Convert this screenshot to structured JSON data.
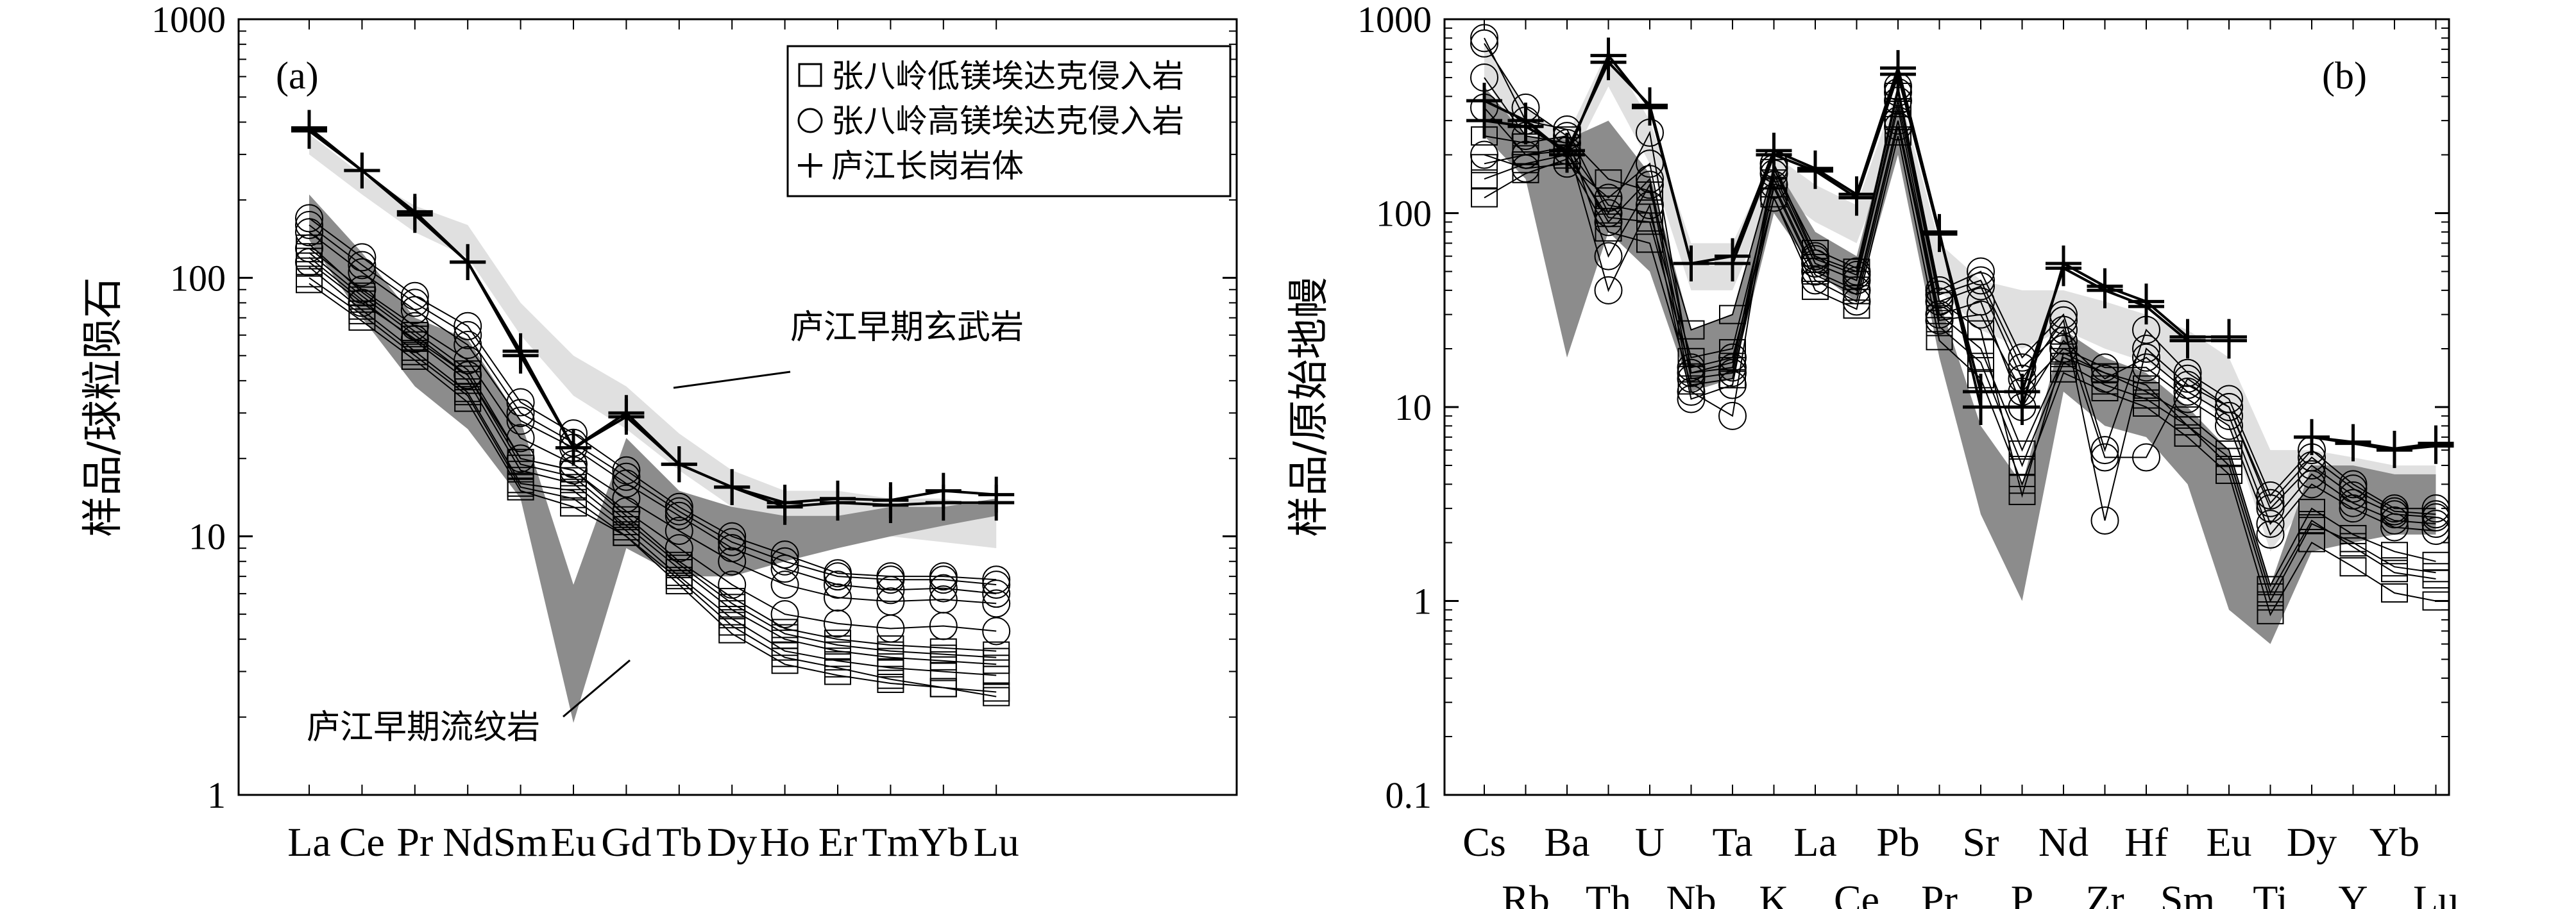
{
  "chart_data": [
    {
      "type": "line",
      "panel_label": "(a)",
      "ylabel": "样品/球粒陨石",
      "xlabel": "",
      "y_scale": "log",
      "ylim": [
        1,
        1000
      ],
      "yticks": [
        "1",
        "10",
        "100",
        "1000"
      ],
      "categories": [
        "La",
        "Ce",
        "Pr",
        "Nd",
        "Sm",
        "Eu",
        "Gd",
        "Tb",
        "Dy",
        "Ho",
        "Er",
        "Tm",
        "Yb",
        "Lu"
      ],
      "legend": [
        {
          "marker": "square",
          "label": "张八岭低镁埃达克侵入岩"
        },
        {
          "marker": "circle",
          "label": "张八岭高镁埃达克侵入岩"
        },
        {
          "marker": "plus",
          "label": "庐江长岗岩体"
        }
      ],
      "annotations": [
        "庐江早期玄武岩",
        "庐江早期流纹岩"
      ],
      "fields": [
        {
          "name": "庐江早期玄武岩",
          "color": "#e0e0e0",
          "upper": [
            360,
            250,
            190,
            160,
            80,
            50,
            38,
            25,
            18,
            15,
            15,
            14,
            14,
            13
          ],
          "lower": [
            300,
            210,
            150,
            120,
            60,
            35,
            26,
            18,
            13,
            11,
            10.5,
            10,
            9.5,
            9
          ]
        },
        {
          "name": "庐江早期流纹岩",
          "color": "#8c8c8c",
          "upper": [
            210,
            125,
            70,
            58,
            28,
            6.5,
            24,
            15,
            13,
            12,
            12,
            13,
            13,
            14
          ],
          "lower": [
            140,
            70,
            38,
            26,
            14,
            1.9,
            9,
            7,
            7,
            8,
            9,
            10,
            11,
            12
          ]
        }
      ],
      "series": [
        {
          "name": "张八岭低镁埃达克侵入岩",
          "marker": "square",
          "values": [
            95,
            68,
            48,
            33,
            15,
            13,
            10,
            6.5,
            4.2,
            3.2,
            2.9,
            2.7,
            2.6,
            2.5
          ]
        },
        {
          "name": "张八岭低镁埃达克侵入岩",
          "marker": "square",
          "values": [
            110,
            75,
            52,
            36,
            16,
            15,
            10.5,
            7,
            4.8,
            3.6,
            3.3,
            3.1,
            3,
            2.9
          ]
        },
        {
          "name": "张八岭低镁埃达克侵入岩",
          "marker": "square",
          "values": [
            120,
            82,
            57,
            40,
            18,
            16,
            11,
            7.5,
            5.2,
            4,
            3.6,
            3.4,
            3.3,
            3.2
          ]
        },
        {
          "name": "张八岭低镁埃达克侵入岩",
          "marker": "square",
          "values": [
            135,
            88,
            62,
            44,
            20,
            18,
            12,
            8,
            5.8,
            4.4,
            4,
            3.8,
            3.7,
            3.6
          ]
        },
        {
          "name": "张八岭低镁埃达克侵入岩",
          "marker": "square",
          "values": [
            100,
            72,
            50,
            35,
            15.5,
            14,
            10,
            6.8,
            4.5,
            3.4,
            3.1,
            2.8,
            2.6,
            2.4
          ]
        },
        {
          "name": "张八岭低镁埃达克侵入岩",
          "marker": "square",
          "values": [
            125,
            85,
            60,
            42,
            19,
            17,
            11.5,
            7.8,
            5.5,
            4.2,
            3.8,
            3.6,
            3.5,
            3.4
          ]
        },
        {
          "name": "张八岭高镁埃达克侵入岩",
          "marker": "circle",
          "values": [
            150,
            105,
            75,
            55,
            28,
            22,
            16,
            12,
            9,
            7.5,
            6.5,
            6.2,
            6.3,
            6
          ]
        },
        {
          "name": "张八岭高镁埃达克侵入岩",
          "marker": "circle",
          "values": [
            170,
            120,
            85,
            65,
            33,
            25,
            18,
            13,
            10,
            8.5,
            7.2,
            7,
            7,
            6.8
          ]
        },
        {
          "name": "张八岭高镁埃达克侵入岩",
          "marker": "circle",
          "values": [
            130,
            90,
            65,
            48,
            24,
            19,
            14,
            10.5,
            8,
            6.5,
            5.8,
            5.6,
            5.7,
            5.5
          ]
        },
        {
          "name": "张八岭高镁埃达克侵入岩",
          "marker": "circle",
          "values": [
            160,
            112,
            80,
            60,
            30,
            23,
            17,
            12.5,
            9.5,
            8,
            7,
            6.8,
            6.8,
            6.5
          ]
        },
        {
          "name": "张八岭高镁埃达克侵入岩",
          "marker": "circle",
          "values": [
            115,
            80,
            58,
            42,
            20,
            18,
            12.5,
            9,
            6.5,
            5,
            4.6,
            4.4,
            4.5,
            4.3
          ]
        },
        {
          "name": "庐江长岗岩体",
          "marker": "plus",
          "values": [
            380,
            260,
            180,
            115,
            50,
            22,
            30,
            19,
            15.5,
            13.5,
            14,
            13.8,
            15,
            14.5
          ]
        },
        {
          "name": "庐江长岗岩体",
          "marker": "plus",
          "values": [
            370,
            260,
            175,
            115,
            52,
            22,
            29,
            19,
            15.5,
            13,
            13.5,
            13.2,
            13.5,
            13.5
          ]
        }
      ]
    },
    {
      "type": "line",
      "panel_label": "(b)",
      "ylabel": "样品/原始地幔",
      "xlabel": "",
      "y_scale": "log",
      "ylim": [
        0.1,
        1000
      ],
      "yticks": [
        "0.1",
        "1",
        "10",
        "100",
        "1000"
      ],
      "categories": [
        "Cs",
        "Rb",
        "Ba",
        "Th",
        "U",
        "Nb",
        "Ta",
        "K",
        "La",
        "Ce",
        "Pb",
        "Pr",
        "Sr",
        "P",
        "Nd",
        "Zr",
        "Hf",
        "Sm",
        "Eu",
        "Ti",
        "Dy",
        "Y",
        "Yb",
        "Lu"
      ],
      "fields": [
        {
          "name": "庐江早期玄武岩",
          "color": "#e0e0e0",
          "upper": [
            750,
            350,
            250,
            700,
            300,
            70,
            70,
            200,
            140,
            110,
            450,
            70,
            45,
            40,
            40,
            35,
            30,
            25,
            18,
            6,
            6,
            5.5,
            5,
            5
          ],
          "lower": [
            500,
            220,
            170,
            450,
            180,
            40,
            40,
            130,
            90,
            70,
            250,
            40,
            25,
            20,
            25,
            20,
            17,
            13,
            8,
            1.8,
            3.5,
            3.5,
            3,
            3
          ]
        },
        {
          "name": "庐江早期流纹岩",
          "color": "#8c8c8c",
          "upper": [
            450,
            250,
            240,
            300,
            160,
            25,
            30,
            180,
            80,
            60,
            400,
            35,
            8,
            4,
            25,
            18,
            15,
            10,
            6,
            1.2,
            5,
            5,
            4.5,
            4.5
          ]
        },
        {
          "name": "庐江早期流纹岩",
          "color": "#8c8c8c",
          "lower": [
            250,
            150,
            18,
            80,
            50,
            12,
            14,
            100,
            50,
            35,
            200,
            18,
            2.8,
            1,
            12,
            8,
            7,
            4,
            0.9,
            0.6,
            1.8,
            2,
            2.2,
            2.2
          ]
        }
      ],
      "series": [
        {
          "name": "张八岭低镁埃达克侵入岩",
          "marker": "square",
          "values": [
            120,
            160,
            190,
            80,
            70,
            13,
            14,
            120,
            40,
            32,
            250,
            22,
            14,
            4,
            15,
            12,
            10,
            7,
            4.5,
            0.85,
            2,
            1.5,
            1.1,
            1
          ]
        },
        {
          "name": "张八岭低镁埃达克侵入岩",
          "marker": "square",
          "values": [
            180,
            200,
            220,
            110,
            100,
            18,
            20,
            150,
            55,
            45,
            350,
            30,
            20,
            6,
            18,
            15,
            12,
            9,
            6,
            1.2,
            3,
            2.2,
            1.8,
            1.6
          ]
        },
        {
          "name": "张八岭低镁埃达克侵入岩",
          "marker": "square",
          "values": [
            250,
            230,
            250,
            150,
            130,
            25,
            30,
            170,
            65,
            52,
            420,
            35,
            25,
            3.5,
            19,
            15,
            13,
            8,
            5,
            1,
            2.5,
            2,
            1.5,
            1.4
          ]
        },
        {
          "name": "张八岭低镁埃达克侵入岩",
          "marker": "square",
          "values": [
            150,
            180,
            200,
            95,
            90,
            15,
            17,
            135,
            48,
            38,
            300,
            26,
            17,
            5,
            17,
            13,
            11,
            8,
            5.5,
            1.1,
            2.6,
            1.9,
            1.4,
            1.3
          ]
        },
        {
          "name": "张八岭高镁埃达克侵入岩",
          "marker": "circle",
          "values": [
            750,
            350,
            250,
            60,
            140,
            12,
            9,
            180,
            60,
            50,
            450,
            40,
            50,
            18,
            30,
            6,
            25,
            15,
            11,
            3.5,
            6,
            4,
            3,
            3
          ]
        },
        {
          "name": "张八岭高镁埃达克侵入岩",
          "marker": "circle",
          "values": [
            500,
            250,
            230,
            40,
            110,
            11,
            13,
            160,
            55,
            45,
            380,
            35,
            42,
            14,
            28,
            2.6,
            20,
            13,
            10,
            3,
            5,
            3.5,
            2.8,
            2.7
          ]
        },
        {
          "name": "张八岭高镁埃达克侵入岩",
          "marker": "circle",
          "values": [
            350,
            200,
            210,
            90,
            150,
            14,
            15,
            140,
            50,
            40,
            300,
            30,
            35,
            10,
            22,
            14,
            18,
            12,
            9,
            2.5,
            4.5,
            3.2,
            2.6,
            2.5
          ]
        },
        {
          "name": "张八岭高镁埃达克侵入岩",
          "marker": "circle",
          "values": [
            200,
            170,
            180,
            120,
            180,
            16,
            18,
            120,
            45,
            35,
            280,
            28,
            30,
            12,
            20,
            16,
            16,
            11,
            8,
            2.2,
            4,
            3,
            2.4,
            2.3
          ]
        },
        {
          "name": "张八岭高镁埃达克侵入岩",
          "marker": "circle",
          "values": [
            800,
            300,
            270,
            100,
            260,
            15,
            16,
            170,
            58,
            48,
            420,
            38,
            45,
            16,
            25,
            5.5,
            5.5,
            14,
            10,
            3.2,
            5.5,
            3.8,
            2.9,
            2.8
          ]
        },
        {
          "name": "庐江长岗岩体",
          "marker": "plus",
          "values": [
            380,
            300,
            200,
            650,
            350,
            55,
            60,
            210,
            170,
            125,
            560,
            80,
            10,
            10,
            55,
            42,
            35,
            23,
            23,
            null,
            7,
            6.5,
            6,
            6.3
          ]
        },
        {
          "name": "庐江长岗岩体",
          "marker": "plus",
          "values": [
            300,
            280,
            210,
            600,
            360,
            55,
            55,
            200,
            165,
            120,
            520,
            78,
            12,
            12,
            52,
            40,
            33,
            22,
            22,
            null,
            7,
            6.6,
            6.1,
            6.5
          ]
        }
      ]
    }
  ],
  "legend_title_keys": [
    "张八岭低镁埃达克侵入岩",
    "张八岭高镁埃达克侵入岩",
    "庐江长岗岩体"
  ]
}
